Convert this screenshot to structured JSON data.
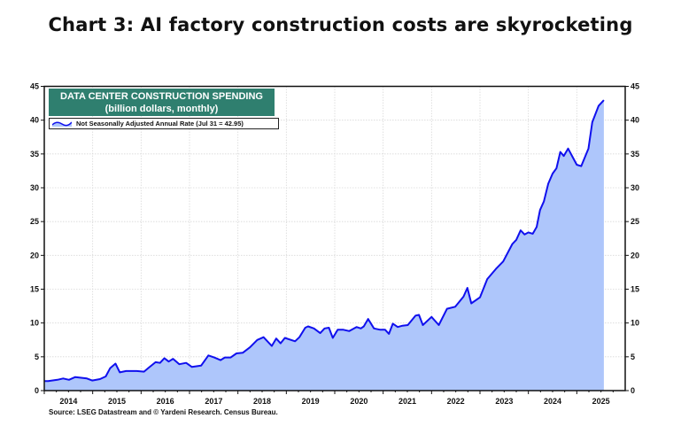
{
  "title": "Chart 3: AI factory construction costs are skyrocketing",
  "source": "Source: LSEG Datastream and © Yardeni Research. Census Bureau.",
  "colors": {
    "line": "#1010ee",
    "fill": "#aec6fb",
    "legend_header": "#2f7f6f"
  },
  "chart_data": {
    "type": "area",
    "title": "DATA CENTER CONSTRUCTION SPENDING",
    "subtitle": "(billion dollars, monthly)",
    "legend": "Not Seasonally Adjusted Annual Rate (Jul 31 = 42.95)",
    "legend_placement": "top-left",
    "grid": true,
    "xlim": [
      2014,
      2026
    ],
    "ylim": [
      0,
      45
    ],
    "x_tick_labels": [
      "2014",
      "2015",
      "2016",
      "2017",
      "2018",
      "2019",
      "2020",
      "2021",
      "2022",
      "2023",
      "2024",
      "2025"
    ],
    "y_ticks": [
      0,
      5,
      10,
      15,
      20,
      25,
      30,
      35,
      40,
      45
    ],
    "y_axis_both_sides": true,
    "series": [
      {
        "x": [
          2014.0,
          2014.08,
          2014.27,
          2014.39,
          2014.51,
          2014.64,
          2014.76,
          2014.88,
          2014.99,
          2015.15,
          2015.27,
          2015.36,
          2015.47,
          2015.56,
          2015.69,
          2015.91,
          2016.06,
          2016.16,
          2016.3,
          2016.39,
          2016.48,
          2016.57,
          2016.66,
          2016.79,
          2016.93,
          2017.05,
          2017.24,
          2017.39,
          2017.51,
          2017.64,
          2017.73,
          2017.85,
          2017.97,
          2018.1,
          2018.25,
          2018.4,
          2018.53,
          2018.7,
          2018.79,
          2018.88,
          2018.97,
          2019.18,
          2019.27,
          2019.39,
          2019.45,
          2019.57,
          2019.7,
          2019.79,
          2019.88,
          2019.96,
          2020.06,
          2020.18,
          2020.3,
          2020.45,
          2020.54,
          2020.6,
          2020.69,
          2020.81,
          2020.94,
          2021.04,
          2021.12,
          2021.2,
          2021.3,
          2021.4,
          2021.51,
          2021.67,
          2021.74,
          2021.82,
          2022.0,
          2022.15,
          2022.32,
          2022.49,
          2022.66,
          2022.74,
          2022.82,
          2023.0,
          2023.15,
          2023.33,
          2023.48,
          2023.67,
          2023.75,
          2023.84,
          2023.92,
          2024.0,
          2024.09,
          2024.17,
          2024.24,
          2024.32,
          2024.41,
          2024.5,
          2024.58,
          2024.66,
          2024.73,
          2024.82,
          2024.91,
          2025.0,
          2025.09,
          2025.24,
          2025.32,
          2025.45,
          2025.56
        ],
        "y": [
          1.4,
          1.4,
          1.6,
          1.8,
          1.6,
          2.0,
          1.9,
          1.8,
          1.5,
          1.7,
          2.1,
          3.3,
          4.0,
          2.7,
          2.9,
          2.9,
          2.8,
          3.4,
          4.2,
          4.1,
          4.8,
          4.3,
          4.7,
          3.9,
          4.1,
          3.5,
          3.7,
          5.2,
          4.9,
          4.5,
          4.9,
          4.9,
          5.5,
          5.6,
          6.4,
          7.5,
          7.9,
          6.6,
          7.7,
          7.0,
          7.8,
          7.3,
          7.9,
          9.3,
          9.5,
          9.2,
          8.5,
          9.2,
          9.3,
          7.8,
          9.0,
          9.0,
          8.8,
          9.4,
          9.2,
          9.5,
          10.6,
          9.2,
          9.0,
          9.0,
          8.4,
          9.9,
          9.4,
          9.6,
          9.7,
          11.1,
          11.2,
          9.7,
          10.9,
          9.7,
          12.1,
          12.4,
          13.9,
          15.2,
          12.9,
          13.8,
          16.5,
          18.0,
          19.1,
          21.7,
          22.3,
          23.7,
          23.1,
          23.4,
          23.2,
          24.2,
          26.7,
          28.0,
          30.6,
          32.1,
          32.9,
          35.3,
          34.7,
          35.8,
          34.6,
          33.4,
          33.2,
          35.8,
          39.7,
          42.1,
          42.95
        ]
      }
    ]
  }
}
